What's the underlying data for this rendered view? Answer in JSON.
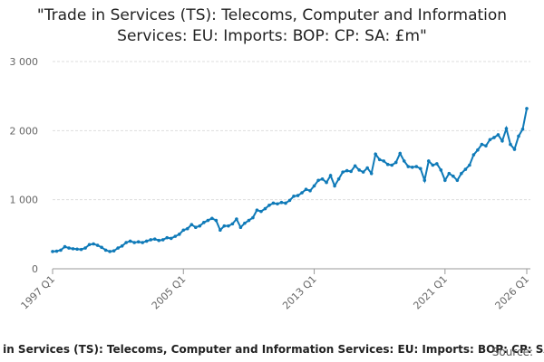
{
  "chart_data": {
    "type": "line",
    "title": "\"Trade in Services (TS): Telecoms, Computer and Information Services: EU: Imports: BOP: CP: SA: £m\"",
    "footer": "Trade in Services (TS): Telecoms, Computer and Information Services: EU: Imports: BOP: CP: SA: £m",
    "source": "Source:",
    "color": "#0f7ab8",
    "categories": [
      "1997 Q1",
      null,
      null,
      null,
      null,
      null,
      null,
      null,
      null,
      null,
      null,
      null,
      null,
      null,
      null,
      null,
      null,
      null,
      null,
      null,
      null,
      null,
      null,
      null,
      null,
      null,
      null,
      null,
      null,
      null,
      null,
      null,
      "2005 Q1",
      null,
      null,
      null,
      null,
      null,
      null,
      null,
      null,
      null,
      null,
      null,
      null,
      null,
      null,
      null,
      null,
      null,
      null,
      null,
      null,
      null,
      null,
      null,
      null,
      null,
      null,
      null,
      null,
      null,
      null,
      null,
      "2013 Q1",
      null,
      null,
      null,
      null,
      null,
      null,
      null,
      null,
      null,
      null,
      null,
      null,
      null,
      null,
      null,
      null,
      null,
      null,
      null,
      null,
      null,
      null,
      null,
      null,
      null,
      null,
      null,
      null,
      null,
      null,
      null,
      "2021 Q1",
      null,
      null,
      null,
      null,
      null,
      null,
      null,
      null,
      null,
      null,
      null,
      null,
      null,
      null,
      null,
      null,
      null,
      null,
      null,
      "2026 Q1"
    ],
    "values": [
      250,
      255,
      270,
      320,
      300,
      290,
      285,
      280,
      300,
      350,
      360,
      340,
      310,
      270,
      250,
      260,
      300,
      330,
      380,
      400,
      380,
      390,
      380,
      400,
      420,
      430,
      410,
      420,
      450,
      440,
      470,
      500,
      560,
      580,
      640,
      600,
      620,
      670,
      700,
      730,
      700,
      560,
      620,
      620,
      650,
      720,
      600,
      660,
      700,
      740,
      850,
      830,
      870,
      920,
      950,
      940,
      960,
      950,
      990,
      1050,
      1060,
      1100,
      1150,
      1130,
      1200,
      1280,
      1300,
      1250,
      1350,
      1200,
      1300,
      1400,
      1420,
      1410,
      1490,
      1430,
      1400,
      1460,
      1380,
      1660,
      1580,
      1560,
      1510,
      1500,
      1540,
      1670,
      1560,
      1480,
      1470,
      1480,
      1450,
      1280,
      1560,
      1500,
      1520,
      1430,
      1280,
      1380,
      1340,
      1280,
      1380,
      1440,
      1500,
      1650,
      1720,
      1800,
      1780,
      1870,
      1900,
      1940,
      1850,
      2030,
      1800,
      1730,
      1920,
      2020,
      2320
    ],
    "ylim": [
      0,
      3000
    ],
    "yticks": [
      0,
      {
        "value": 1000,
        "label": "1 000"
      },
      {
        "value": 2000,
        "label": "2 000"
      },
      {
        "value": 3000,
        "label": "3 000"
      }
    ],
    "grid": true
  }
}
